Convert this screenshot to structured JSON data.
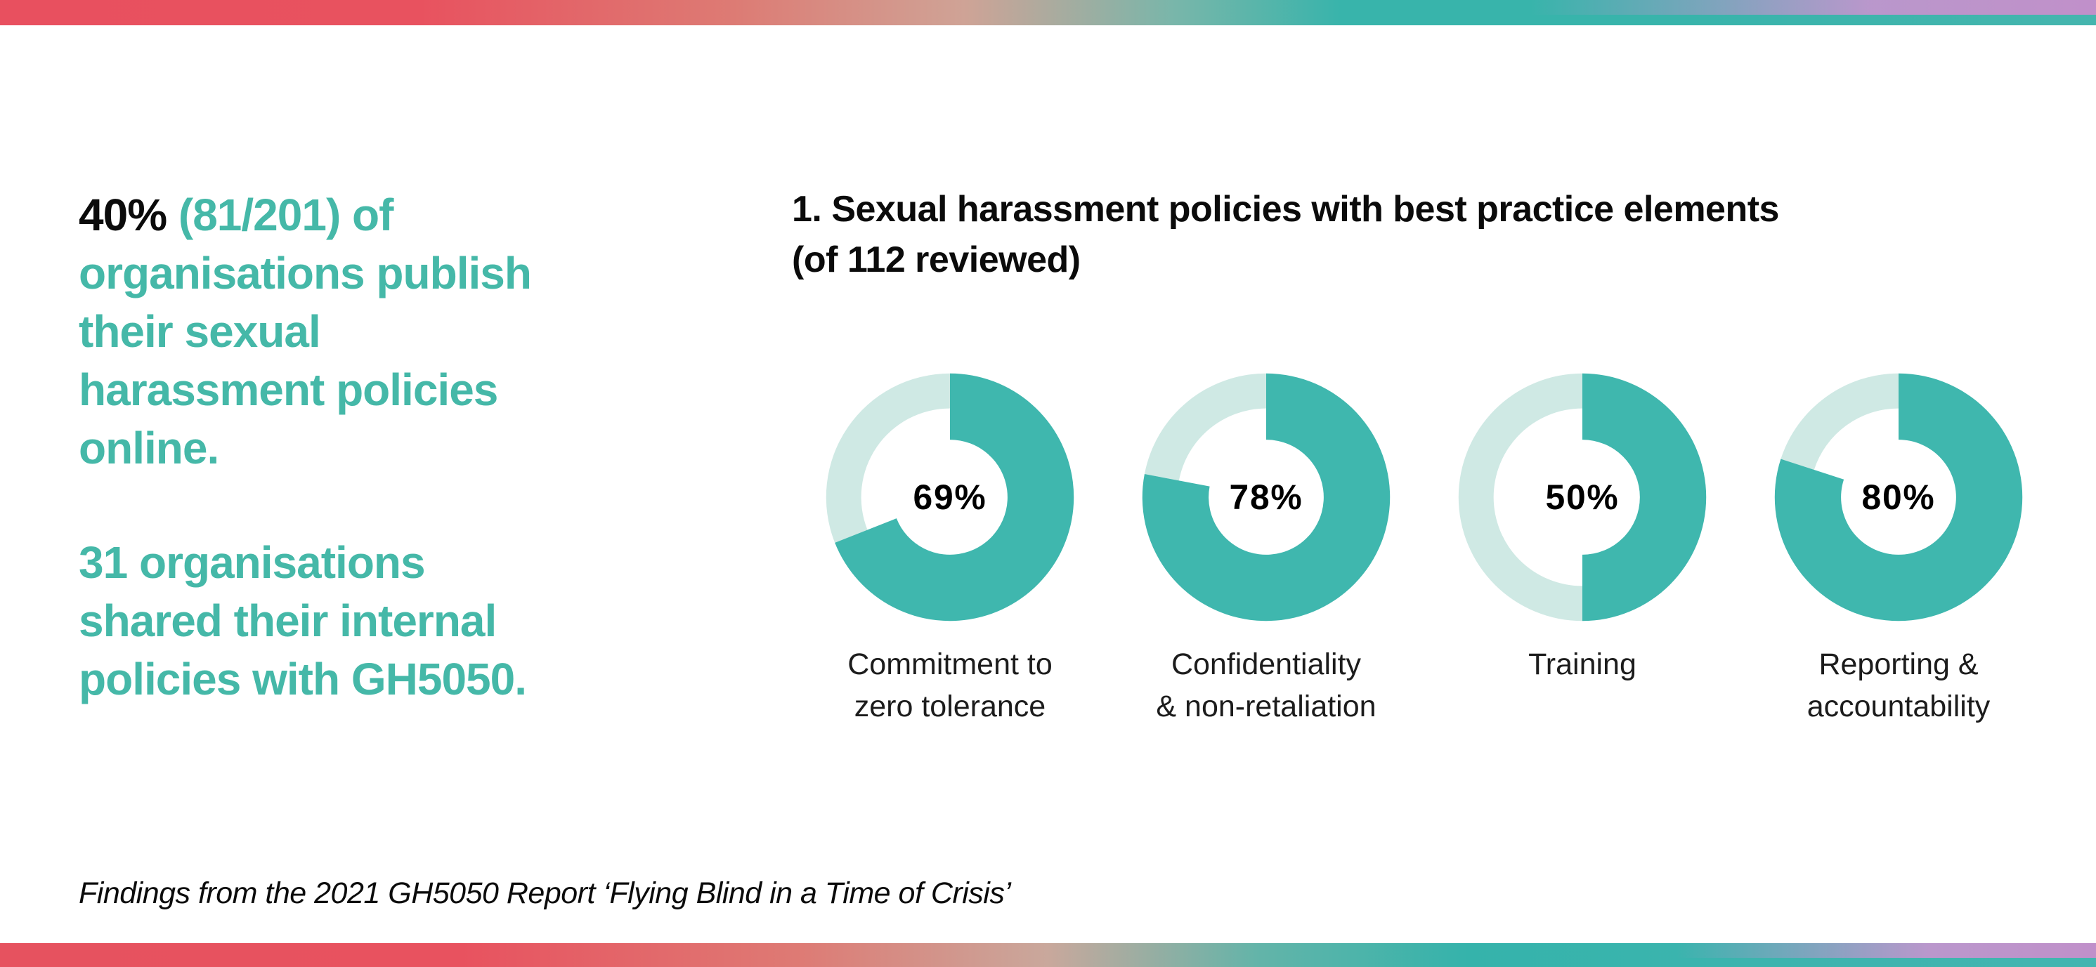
{
  "left_panel": {
    "p1_black": "40%",
    "p1_teal_rest": " (81/201) of",
    "p1_lines": [
      "organisations publish",
      "their sexual",
      "harassment policies",
      "online."
    ],
    "p2_lines": [
      "31 organisations",
      "shared their internal",
      "policies with GH5050."
    ]
  },
  "chart": {
    "title_line1": "1. Sexual harassment policies with best practice elements",
    "title_line2": "(of 112 reviewed)"
  },
  "chart_data": {
    "type": "pie",
    "subtype": "donut",
    "title": "1. Sexual harassment policies with best practice elements (of 112 reviewed)",
    "categories": [
      "Commitment to zero tolerance",
      "Confidentiality & non-retaliation",
      "Training",
      "Reporting & accountability"
    ],
    "values": [
      69,
      78,
      50,
      80
    ],
    "unit": "%",
    "value_labels": [
      "69%",
      "78%",
      "50%",
      "80%"
    ],
    "label_lines": [
      [
        "Commitment to",
        "zero tolerance"
      ],
      [
        "Confidentiality",
        "& non-retaliation"
      ],
      [
        "Training"
      ],
      [
        "Reporting &",
        "accountability"
      ]
    ],
    "start_angle": "top",
    "direction": "clockwise",
    "colors": {
      "filled": "#3fb7ae",
      "remainder": "#cfe9e4",
      "value_text": "#000000"
    }
  },
  "footer": {
    "text": "Findings from the 2021 GH5050 Report ‘Flying Blind in a Time of Crisis’"
  },
  "colors": {
    "accent_teal_text": "#45b8a8",
    "black_text": "#0b0b0b",
    "bar_red": "#e8505f",
    "bar_tan": "#cfa396",
    "bar_teal": "#38b4ab",
    "bar_pink": "#cf92d1"
  }
}
